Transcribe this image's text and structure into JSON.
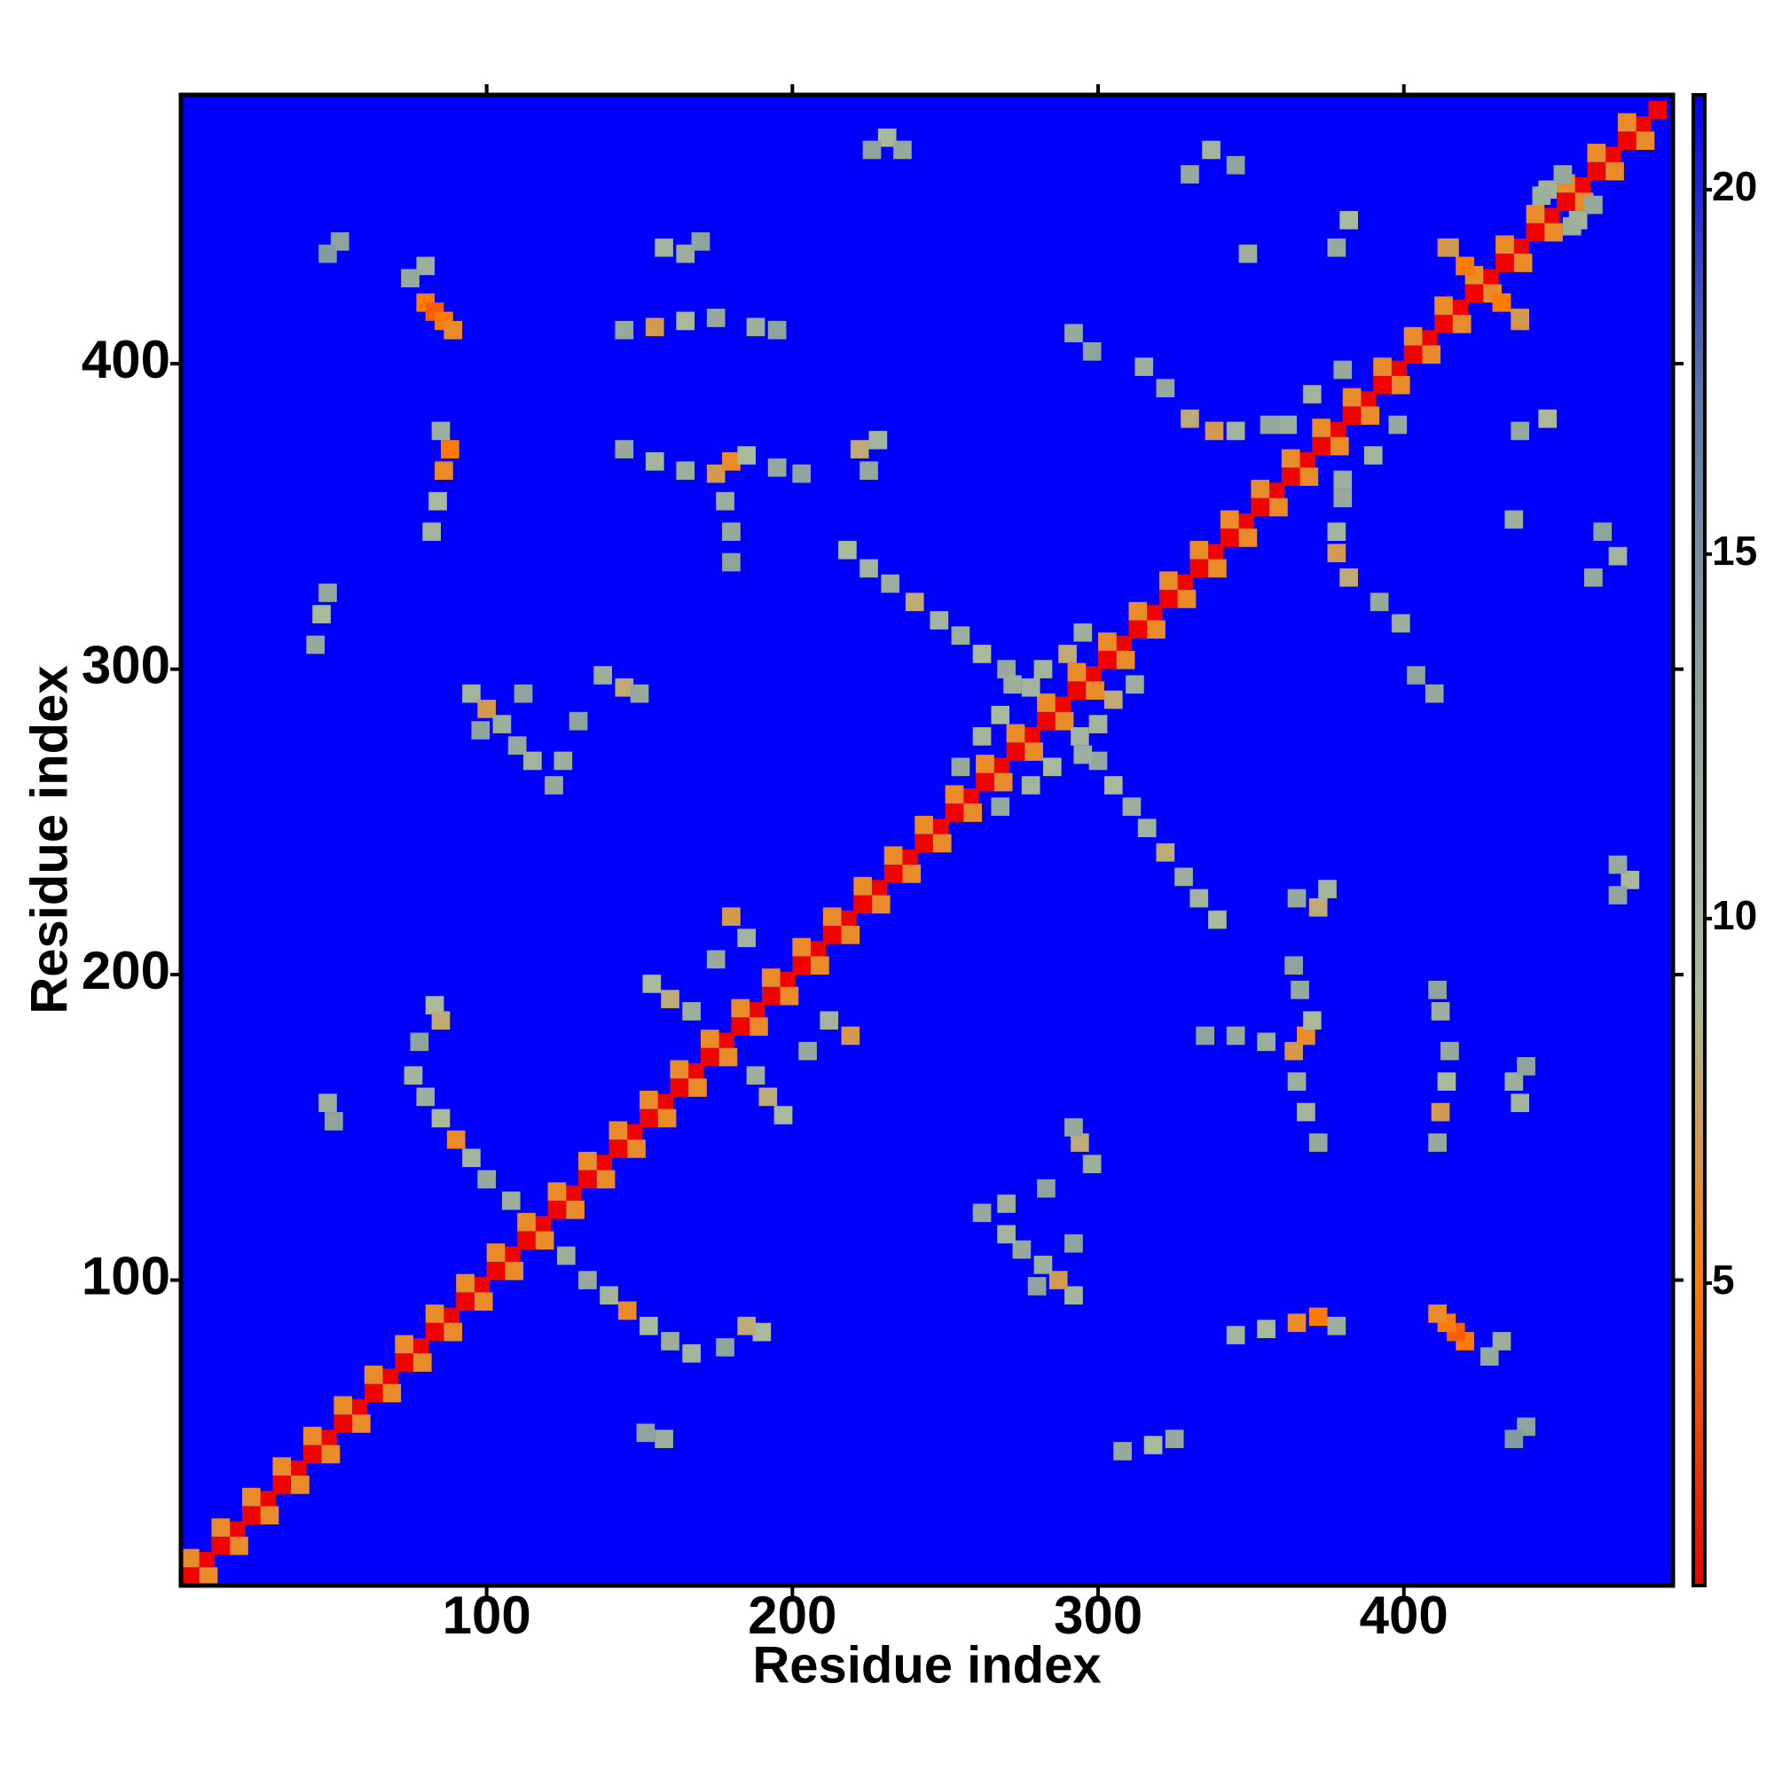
{
  "chart_data": {
    "type": "heatmap",
    "xlabel": "Residue index",
    "ylabel": "Residue index",
    "xlim": [
      0,
      488
    ],
    "ylim": [
      0,
      488
    ],
    "xticks": [
      100,
      200,
      300,
      400
    ],
    "yticks": [
      100,
      200,
      300,
      400
    ],
    "symmetric": true,
    "background": "#0000ff",
    "colormap": [
      "#ee0000",
      "#ff7a00",
      "#a8ba9c",
      "#8fa39e",
      "#5878aa",
      "#0000ff"
    ],
    "colorbar": {
      "lim": [
        0.85,
        21.3
      ],
      "ticks": [
        5,
        10,
        15,
        20
      ]
    },
    "cells": {
      "x": [
        3,
        8,
        13,
        18,
        23,
        28,
        33,
        38,
        43,
        48,
        53,
        58,
        63,
        68,
        73,
        78,
        83,
        88,
        93,
        98,
        103,
        108,
        113,
        118,
        123,
        128,
        133,
        138,
        143,
        148,
        153,
        158,
        163,
        168,
        173,
        178,
        183,
        188,
        193,
        198,
        203,
        208,
        213,
        218,
        223,
        228,
        233,
        238,
        243,
        248,
        253,
        258,
        263,
        268,
        273,
        278,
        283,
        288,
        293,
        298,
        303,
        308,
        313,
        318,
        323,
        328,
        333,
        338,
        343,
        348,
        353,
        358,
        363,
        368,
        373,
        378,
        383,
        388,
        393,
        398,
        403,
        408,
        413,
        418,
        423,
        428,
        433,
        438,
        443,
        448,
        453,
        458,
        463,
        468,
        473,
        478,
        483,
        3,
        13,
        23,
        33,
        43,
        53,
        63,
        73,
        83,
        93,
        103,
        113,
        123,
        133,
        143,
        153,
        163,
        173,
        183,
        193,
        203,
        213,
        223,
        233,
        243,
        253,
        263,
        273,
        283,
        293,
        303,
        313,
        323,
        333,
        343,
        353,
        363,
        373,
        383,
        393,
        403,
        413,
        423,
        433,
        443,
        453,
        463,
        473,
        80,
        83,
        86,
        89,
        80,
        75,
        52,
        48,
        231,
        236,
        226,
        158,
        165,
        170,
        145,
        155,
        165,
        175,
        188,
        195,
        82,
        84,
        86,
        88,
        85,
        145,
        155,
        165,
        175,
        180,
        185,
        195,
        203,
        178,
        180,
        180,
        222,
        228,
        225,
        46,
        44,
        48,
        95,
        100,
        105,
        110,
        115,
        98,
        112,
        138,
        145,
        150,
        125,
        130,
        122,
        83,
        85,
        78,
        76,
        80,
        85,
        90,
        95,
        100,
        108,
        48,
        50,
        218,
        225,
        232,
        240,
        248,
        255,
        262,
        270,
        278,
        337,
        330,
        345,
        349,
        382,
        378,
        315,
        322,
        330,
        338,
        345,
        356,
        292,
        298,
        414,
        420,
        432,
        438,
        457,
        462,
        445,
        154,
        160,
        167,
        180,
        185,
        175,
        268,
        272,
        282,
        290,
        295,
        255,
        262,
        362,
        370,
        380
      ],
      "y": [
        3,
        8,
        13,
        18,
        23,
        28,
        33,
        38,
        43,
        48,
        53,
        58,
        63,
        68,
        73,
        78,
        83,
        88,
        93,
        98,
        103,
        108,
        113,
        118,
        123,
        128,
        133,
        138,
        143,
        148,
        153,
        158,
        163,
        168,
        173,
        178,
        183,
        188,
        193,
        198,
        203,
        208,
        213,
        218,
        223,
        228,
        233,
        238,
        243,
        248,
        253,
        258,
        263,
        268,
        273,
        278,
        283,
        288,
        293,
        298,
        303,
        308,
        313,
        318,
        323,
        328,
        333,
        338,
        343,
        348,
        353,
        358,
        363,
        368,
        373,
        378,
        383,
        388,
        393,
        398,
        403,
        408,
        413,
        418,
        423,
        428,
        433,
        438,
        443,
        448,
        453,
        458,
        463,
        468,
        473,
        478,
        483,
        9,
        19,
        29,
        39,
        49,
        59,
        69,
        79,
        89,
        99,
        109,
        119,
        129,
        139,
        149,
        159,
        169,
        179,
        189,
        199,
        209,
        219,
        229,
        239,
        249,
        259,
        269,
        279,
        289,
        299,
        309,
        319,
        329,
        339,
        349,
        359,
        369,
        379,
        389,
        399,
        409,
        419,
        429,
        439,
        449,
        459,
        469,
        479,
        420,
        417,
        414,
        411,
        432,
        428,
        440,
        436,
        474,
        470,
        470,
        438,
        436,
        440,
        411,
        412,
        414,
        415,
        412,
        411,
        345,
        355,
        365,
        372,
        378,
        372,
        368,
        365,
        364,
        368,
        370,
        366,
        364,
        355,
        345,
        335,
        372,
        375,
        365,
        318,
        308,
        325,
        292,
        287,
        282,
        275,
        270,
        280,
        292,
        298,
        294,
        292,
        270,
        283,
        262,
        190,
        185,
        178,
        167,
        160,
        153,
        146,
        140,
        133,
        126,
        158,
        152,
        339,
        333,
        328,
        322,
        316,
        311,
        305,
        300,
        294,
        470,
        462,
        465,
        436,
        447,
        438,
        399,
        392,
        382,
        378,
        378,
        380,
        410,
        404,
        438,
        432,
        420,
        415,
        447,
        452,
        455,
        197,
        192,
        188,
        219,
        212,
        205,
        285,
        295,
        300,
        305,
        312,
        268,
        278,
        380,
        390,
        398
      ],
      "values": [
        1,
        1,
        1,
        1,
        1,
        1,
        1,
        1,
        1,
        1,
        1,
        1,
        1,
        1,
        1,
        1,
        1,
        1,
        1,
        1,
        1,
        1,
        1,
        1,
        1,
        1,
        1,
        1,
        1,
        1,
        1,
        1,
        1,
        1,
        1,
        1,
        1,
        1,
        1,
        1,
        1,
        1,
        1,
        1,
        1,
        1,
        1,
        1,
        1,
        1,
        1,
        1,
        1,
        1,
        1,
        1,
        1,
        1,
        1,
        1,
        1,
        1,
        1,
        1,
        1,
        1,
        1,
        1,
        1,
        1,
        1,
        1,
        1,
        1,
        1,
        1,
        1,
        1,
        1,
        1,
        1,
        1,
        1,
        1,
        1,
        1,
        1,
        1,
        1,
        1,
        1,
        1,
        1,
        1,
        1,
        1,
        1,
        6,
        6,
        6,
        6,
        6,
        6,
        6,
        6,
        6,
        6,
        6,
        6,
        6,
        6,
        6,
        6,
        6,
        6,
        6,
        6,
        6,
        6,
        6,
        6,
        6,
        6,
        6,
        6,
        6,
        6,
        6,
        6,
        6,
        6,
        6,
        6,
        6,
        6,
        6,
        6,
        6,
        6,
        6,
        6,
        6,
        6,
        6,
        6,
        5,
        4,
        5,
        6,
        11,
        12,
        13,
        14,
        9,
        12,
        13,
        10,
        11,
        13,
        12,
        7,
        9,
        12,
        11,
        13,
        10,
        9,
        6,
        5,
        11,
        12,
        10,
        11,
        7,
        6,
        9,
        12,
        13,
        11,
        12,
        13,
        8,
        10,
        12,
        9,
        12,
        12,
        10,
        7,
        11,
        12,
        10,
        13,
        13,
        11,
        8,
        12,
        11,
        13,
        12,
        9,
        8,
        13,
        10,
        11,
        9,
        6,
        10,
        12,
        11,
        11,
        13,
        9,
        10,
        11,
        8,
        10,
        11,
        9,
        12,
        10,
        10,
        12,
        13,
        11,
        9,
        12,
        11,
        12,
        8,
        7,
        10,
        12,
        12,
        13,
        6,
        5,
        5,
        7,
        10,
        12,
        11,
        9,
        8,
        11,
        7,
        10,
        12,
        9,
        11,
        10,
        8,
        11,
        12,
        10,
        11,
        10,
        12
      ]
    }
  }
}
